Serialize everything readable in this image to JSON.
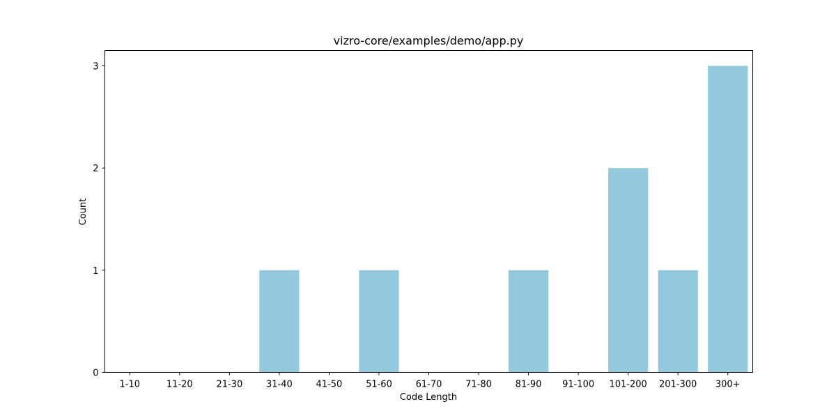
{
  "chart_data": {
    "type": "bar",
    "title": "vizro-core/examples/demo/app.py",
    "xlabel": "Code Length",
    "ylabel": "Count",
    "categories": [
      "1-10",
      "11-20",
      "21-30",
      "31-40",
      "41-50",
      "51-60",
      "61-70",
      "71-80",
      "81-90",
      "91-100",
      "101-200",
      "201-300",
      "300+"
    ],
    "values": [
      0,
      0,
      0,
      1,
      0,
      1,
      0,
      0,
      1,
      0,
      2,
      1,
      3
    ],
    "ylim": [
      0,
      3.15
    ],
    "yticks": [
      0,
      1,
      2,
      3
    ],
    "bar_color": "#92c9de",
    "grid": false,
    "legend": "none"
  }
}
